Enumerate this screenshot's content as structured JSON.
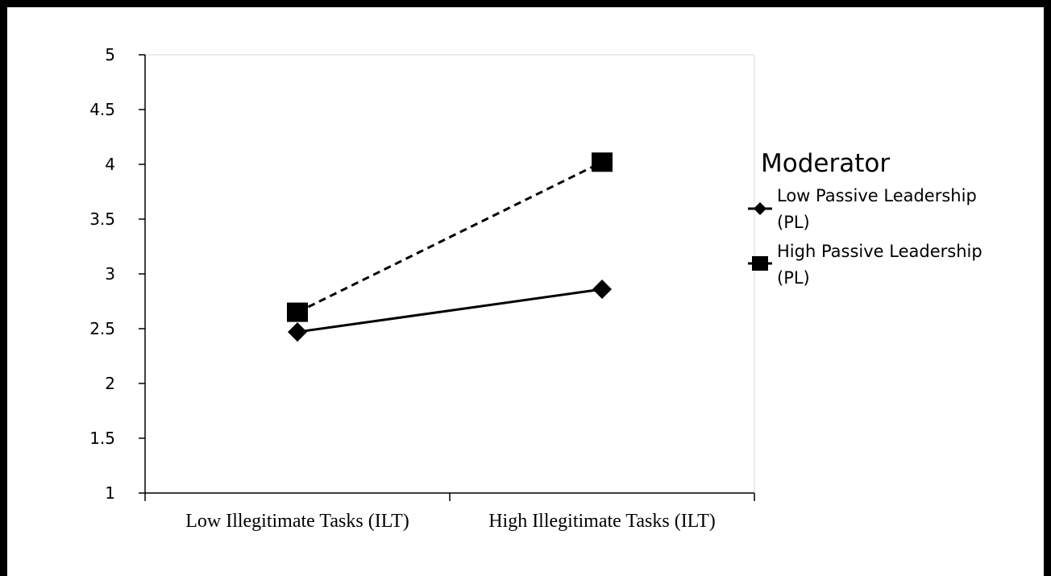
{
  "chart_data": {
    "type": "line",
    "categories": [
      "Low Illegitimate Tasks (ILT)",
      "High Illegitimate Tasks (ILT)"
    ],
    "ylim": [
      1,
      5
    ],
    "yticks": [
      "1",
      "1.5",
      "2",
      "2.5",
      "3",
      "3.5",
      "4",
      "4.5",
      "5"
    ],
    "grid": false,
    "legend": {
      "title": "Moderator",
      "placement": "right"
    },
    "series": [
      {
        "name": "Low Passive Leadership (PL)",
        "name_lines": [
          "Low Passive Leadership",
          "(PL)"
        ],
        "values": [
          2.47,
          2.86
        ],
        "marker": "diamond",
        "line_style": "solid",
        "color": "#000000"
      },
      {
        "name": "High Passive Leadership (PL)",
        "name_lines": [
          "High Passive Leadership",
          "(PL)"
        ],
        "values": [
          2.65,
          4.02
        ],
        "marker": "square",
        "line_style": "dashed",
        "color": "#000000"
      }
    ]
  }
}
